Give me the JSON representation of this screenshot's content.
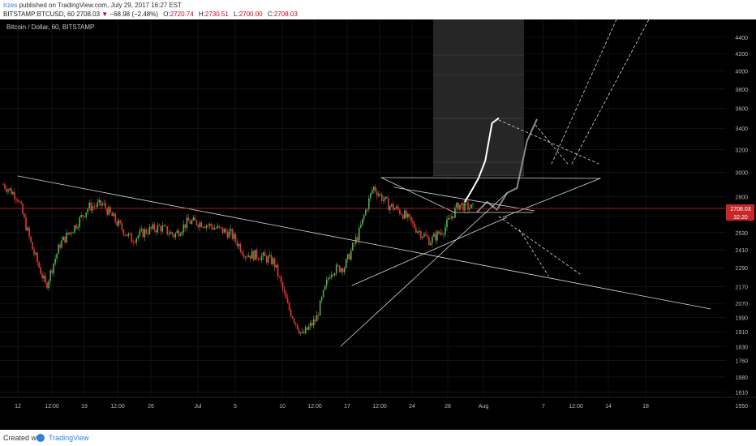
{
  "header": {
    "author": "Irzes",
    "published_text": "published on TradingView.com, July 29, 2017 16:27 EST"
  },
  "ohlc": {
    "symbol": "BITSTAMP:BTCUSD, 60",
    "last": "2708.03",
    "change": "−68.98 (−2.48%)",
    "o_label": "O:",
    "o": "2720.74",
    "h_label": "H:",
    "h": "2730.51",
    "l_label": "L:",
    "l": "2700.00",
    "c_label": "C:",
    "c": "2708.03"
  },
  "chart": {
    "legend": "Bitcoin / Dollar, 60, BITSTAMP",
    "price_labels": {
      "last_price": "2708.03",
      "countdown": "32:20"
    },
    "colors": {
      "background": "#000000",
      "up": "#4caf50",
      "down": "#e53935",
      "drawing": "#d8d8d8",
      "last_price_line": "#c62828"
    }
  },
  "chart_data": {
    "type": "line",
    "title": "Bitcoin / Dollar, 60, BITSTAMP",
    "xlabel": "",
    "ylabel": "",
    "ylim": [
      1480,
      4620
    ],
    "y_scale": "log",
    "y_ticks": [
      1550,
      1610,
      1680,
      1760,
      1830,
      1910,
      1990,
      2070,
      2170,
      2290,
      2410,
      2530,
      2650,
      2800,
      3000,
      3200,
      3400,
      3600,
      3800,
      4000,
      4200,
      4400
    ],
    "x_ticks": [
      "12",
      "12:00",
      "19",
      "12:00",
      "26",
      "Jul",
      "5",
      "10",
      "12:00",
      "17",
      "12:00",
      "24",
      "28",
      "Aug",
      "7",
      "12:00",
      "14",
      "18"
    ],
    "series": [
      {
        "name": "BTCUSD",
        "x": [
          "Jun 12",
          "Jun 13",
          "Jun 14",
          "Jun 15",
          "Jun 16",
          "Jun 18",
          "Jun 20",
          "Jun 22",
          "Jun 24",
          "Jun 26",
          "Jun 28",
          "Jun 30",
          "Jul 2",
          "Jul 4",
          "Jul 6",
          "Jul 8",
          "Jul 10",
          "Jul 12",
          "Jul 13",
          "Jul 14",
          "Jul 15",
          "Jul 16",
          "Jul 17",
          "Jul 18",
          "Jul 19",
          "Jul 20",
          "Jul 21",
          "Jul 22",
          "Jul 24",
          "Jul 25",
          "Jul 26",
          "Jul 27",
          "Jul 28",
          "Jul 29"
        ],
        "values": [
          2900,
          2800,
          2430,
          2170,
          2450,
          2570,
          2720,
          2740,
          2600,
          2480,
          2540,
          2570,
          2510,
          2610,
          2600,
          2560,
          2520,
          2380,
          2370,
          2330,
          2050,
          1890,
          1980,
          2270,
          2300,
          2530,
          2880,
          2740,
          2680,
          2560,
          2470,
          2560,
          2740,
          2708
        ]
      }
    ],
    "projections": [
      {
        "name": "white path",
        "values": [
          2760,
          2850,
          2950,
          3100,
          3450,
          3500
        ]
      },
      {
        "name": "grey path",
        "values": [
          2680,
          2760,
          2700,
          2830,
          2870,
          3280,
          3490
        ]
      }
    ],
    "grid": true,
    "legend_position": "top-left"
  }
}
